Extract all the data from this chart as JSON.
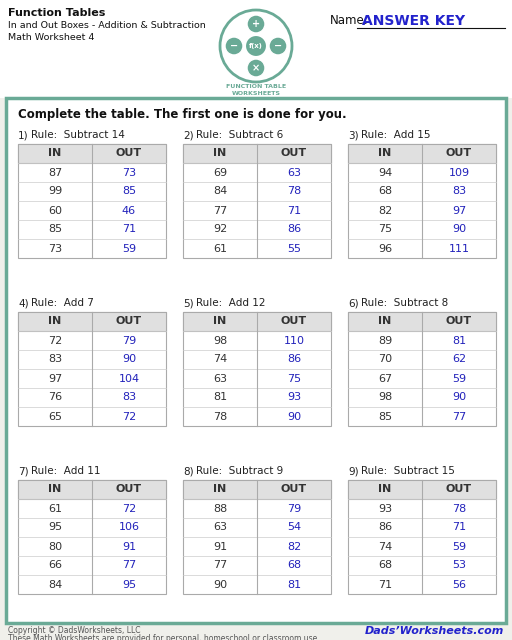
{
  "title_line1": "Function Tables",
  "title_line2": "In and Out Boxes - Addition & Subtraction",
  "title_line3": "Math Worksheet 4",
  "name_label": "Name:",
  "answer_key": "ANSWER KEY",
  "instruction": "Complete the table. The first one is done for you.",
  "bg_color": "#f0f0eb",
  "border_color": "#6aaa96",
  "header_bg": "#e0e0e0",
  "in_color": "#333333",
  "out_color": "#2222bb",
  "tables": [
    {
      "num": "1)",
      "rule": "Rule:  Subtract 14",
      "in": [
        87,
        99,
        60,
        85,
        73
      ],
      "out": [
        73,
        85,
        46,
        71,
        59
      ]
    },
    {
      "num": "2)",
      "rule": "Rule:  Subtract 6",
      "in": [
        69,
        84,
        77,
        92,
        61
      ],
      "out": [
        63,
        78,
        71,
        86,
        55
      ]
    },
    {
      "num": "3)",
      "rule": "Rule:  Add 15",
      "in": [
        94,
        68,
        82,
        75,
        96
      ],
      "out": [
        109,
        83,
        97,
        90,
        111
      ]
    },
    {
      "num": "4)",
      "rule": "Rule:  Add 7",
      "in": [
        72,
        83,
        97,
        76,
        65
      ],
      "out": [
        79,
        90,
        104,
        83,
        72
      ]
    },
    {
      "num": "5)",
      "rule": "Rule:  Add 12",
      "in": [
        98,
        74,
        63,
        81,
        78
      ],
      "out": [
        110,
        86,
        75,
        93,
        90
      ]
    },
    {
      "num": "6)",
      "rule": "Rule:  Subtract 8",
      "in": [
        89,
        70,
        67,
        98,
        85
      ],
      "out": [
        81,
        62,
        59,
        90,
        77
      ]
    },
    {
      "num": "7)",
      "rule": "Rule:  Add 11",
      "in": [
        61,
        95,
        80,
        66,
        84
      ],
      "out": [
        72,
        106,
        91,
        77,
        95
      ]
    },
    {
      "num": "8)",
      "rule": "Rule:  Subtract 9",
      "in": [
        88,
        63,
        91,
        77,
        90
      ],
      "out": [
        79,
        54,
        82,
        68,
        81
      ]
    },
    {
      "num": "9)",
      "rule": "Rule:  Subtract 15",
      "in": [
        93,
        86,
        74,
        68,
        71
      ],
      "out": [
        78,
        71,
        59,
        53,
        56
      ]
    }
  ],
  "footer_left1": "Copyright © DadsWorksheets, LLC",
  "footer_left2": "These Math Worksheets are provided for personal, homeschool or classroom use.",
  "footer_right": "Dads’Worksheets.com"
}
